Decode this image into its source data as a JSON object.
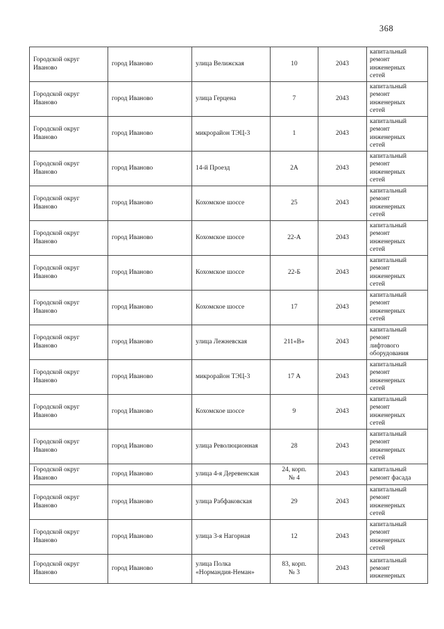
{
  "page": {
    "number": "368"
  },
  "table": {
    "cell_keys": [
      "district",
      "city",
      "street",
      "house",
      "year",
      "work"
    ],
    "rows": [
      {
        "district": "Городской округ\nИваново",
        "city": "город Иваново",
        "street": "улица Велижская",
        "house": "10",
        "year": "2043",
        "work": "капитальный\nремонт\nинженерных\nсетей"
      },
      {
        "district": "Городской округ\nИваново",
        "city": "город Иваново",
        "street": "улица Герцена",
        "house": "7",
        "year": "2043",
        "work": "капитальный\nремонт\nинженерных\nсетей"
      },
      {
        "district": "Городской округ\nИваново",
        "city": "город Иваново",
        "street": "микрорайон ТЭЦ-3",
        "house": "1",
        "year": "2043",
        "work": "капитальный\nремонт\nинженерных\nсетей"
      },
      {
        "district": "Городской округ\nИваново",
        "city": "город Иваново",
        "street": "14-й Проезд",
        "house": "2А",
        "year": "2043",
        "work": "капитальный\nремонт\nинженерных\nсетей"
      },
      {
        "district": "Городской округ\nИваново",
        "city": "город Иваново",
        "street": "Кохомское шоссе",
        "house": "25",
        "year": "2043",
        "work": "капитальный\nремонт\nинженерных\nсетей"
      },
      {
        "district": "Городской округ\nИваново",
        "city": "город Иваново",
        "street": "Кохомское шоссе",
        "house": "22-А",
        "year": "2043",
        "work": "капитальный\nремонт\nинженерных\nсетей"
      },
      {
        "district": "Городской округ\nИваново",
        "city": "город Иваново",
        "street": "Кохомское шоссе",
        "house": "22-Б",
        "year": "2043",
        "work": "капитальный\nремонт\nинженерных\nсетей"
      },
      {
        "district": "Городской округ\nИваново",
        "city": "город Иваново",
        "street": "Кохомское шоссе",
        "house": "17",
        "year": "2043",
        "work": "капитальный\nремонт\nинженерных\nсетей"
      },
      {
        "district": "Городской округ\nИваново",
        "city": "город Иваново",
        "street": "улица Лежневская",
        "house": "211«В»",
        "year": "2043",
        "work": "капитальный\nремонт\nлифтового\nоборудования"
      },
      {
        "district": "Городской округ\nИваново",
        "city": "город Иваново",
        "street": "микрорайон ТЭЦ-3",
        "house": "17 А",
        "year": "2043",
        "work": "капитальный\nремонт\nинженерных\nсетей"
      },
      {
        "district": "Городской округ\nИваново",
        "city": "город Иваново",
        "street": "Кохомское шоссе",
        "house": "9",
        "year": "2043",
        "work": "капитальный\nремонт\nинженерных\nсетей"
      },
      {
        "district": "Городской округ\nИваново",
        "city": "город Иваново",
        "street": "улица Революционная",
        "house": "28",
        "year": "2043",
        "work": "капитальный\nремонт\nинженерных\nсетей"
      },
      {
        "district": "Городской округ\nИваново",
        "city": "город Иваново",
        "street": "улица 4-я Деревенская",
        "house": "24, корп.\n№ 4",
        "year": "2043",
        "work": "капитальный\nремонт фасада"
      },
      {
        "district": "Городской округ\nИваново",
        "city": "город Иваново",
        "street": "улица Рабфаковская",
        "house": "29",
        "year": "2043",
        "work": "капитальный\nремонт\nинженерных\nсетей"
      },
      {
        "district": "Городской округ\nИваново",
        "city": "город Иваново",
        "street": "улица 3-я Нагорная",
        "house": "12",
        "year": "2043",
        "work": "капитальный\nремонт\nинженерных\nсетей"
      },
      {
        "district": "Городской округ\nИваново",
        "city": "город Иваново",
        "street": "улица Полка\n«Нормандия-Неман»",
        "house": "83, корп.\n№ 3",
        "year": "2043",
        "work": "капитальный\nремонт\nинженерных"
      }
    ]
  }
}
